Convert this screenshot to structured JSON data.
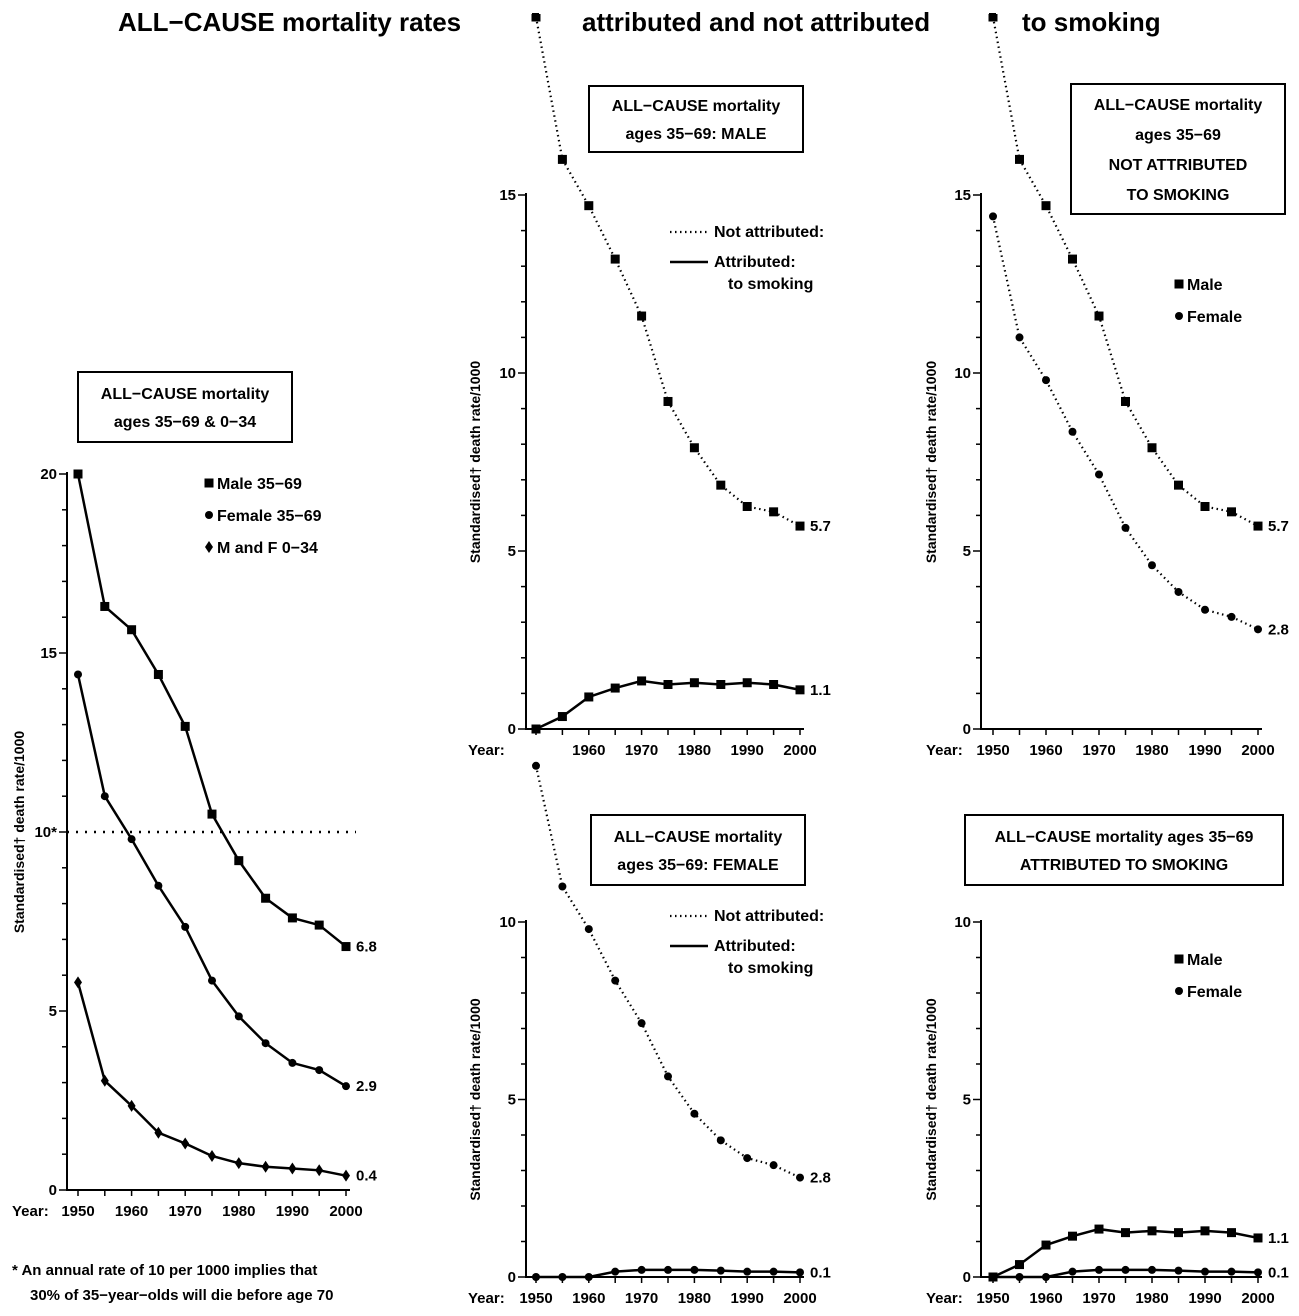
{
  "page": {
    "title_parts": [
      "ALL−CAUSE mortality rates",
      "attributed and not attributed",
      "to smoking"
    ],
    "footnote_lines": [
      "* An annual rate of 10 per 1000 implies that",
      "30% of 35−year−olds will die before age 70"
    ]
  },
  "colors": {
    "ink": "#000000",
    "background": "#ffffff"
  },
  "chart_data": [
    {
      "id": "left",
      "type": "line",
      "box_lines": [
        "ALL−CAUSE mortality",
        "ages 35−69 & 0−34"
      ],
      "ylabel": "Standardised† death rate/1000",
      "x_axis_label": "Year:",
      "x": [
        1950,
        1955,
        1960,
        1965,
        1970,
        1975,
        1980,
        1985,
        1990,
        1995,
        2000
      ],
      "xticks": [
        1950,
        1960,
        1970,
        1980,
        1990,
        2000
      ],
      "xlim": [
        1950,
        2000
      ],
      "yticks": [
        "0",
        "5",
        "10*",
        "15",
        "20"
      ],
      "ylim": [
        0,
        20
      ],
      "reference_line": {
        "y": 10,
        "style": "dotted"
      },
      "legend_position": "top-right",
      "series": [
        {
          "name": "Male 35−69",
          "marker": "square",
          "line": "solid",
          "values": [
            20.0,
            16.3,
            15.65,
            14.4,
            12.95,
            10.5,
            9.2,
            8.15,
            7.6,
            7.4,
            6.8
          ],
          "end_label": "6.8"
        },
        {
          "name": "Female 35−69",
          "marker": "circle",
          "line": "solid",
          "values": [
            14.4,
            11.0,
            9.8,
            8.5,
            7.35,
            5.85,
            4.85,
            4.1,
            3.55,
            3.35,
            2.9
          ],
          "end_label": "2.9"
        },
        {
          "name": "M and F 0−34",
          "marker": "diamond",
          "line": "solid",
          "values": [
            5.8,
            3.05,
            2.35,
            1.6,
            1.3,
            0.95,
            0.75,
            0.65,
            0.6,
            0.55,
            0.4
          ],
          "end_label": "0.4"
        }
      ]
    },
    {
      "id": "male",
      "type": "line",
      "box_lines": [
        "ALL−CAUSE mortality",
        "ages 35−69:  MALE"
      ],
      "ylabel": "Standardised† death rate/1000",
      "x_axis_label": "Year:",
      "x": [
        1950,
        1955,
        1960,
        1965,
        1970,
        1975,
        1980,
        1985,
        1990,
        1995,
        2000
      ],
      "xticks": [
        1960,
        1970,
        1980,
        1990,
        2000
      ],
      "xlim": [
        1950,
        2000
      ],
      "yticks": [
        "0",
        "5",
        "10",
        "15"
      ],
      "ylim": [
        0,
        15
      ],
      "legend_position": "top-right",
      "legend": [
        {
          "lines": [
            "Not attributed:"
          ],
          "line": "dotted"
        },
        {
          "lines": [
            "Attributed:",
            "to smoking"
          ],
          "line": "solid"
        }
      ],
      "series": [
        {
          "line": "dotted",
          "marker": "square",
          "values": [
            20.0,
            16.0,
            14.7,
            13.2,
            11.6,
            9.2,
            7.9,
            6.85,
            6.25,
            6.1,
            5.7
          ],
          "end_label": "5.7"
        },
        {
          "line": "solid",
          "marker": "square",
          "values": [
            0.0,
            0.35,
            0.9,
            1.15,
            1.35,
            1.25,
            1.3,
            1.25,
            1.3,
            1.25,
            1.1
          ],
          "end_label": "1.1"
        }
      ]
    },
    {
      "id": "not-attributed",
      "type": "line",
      "box_lines": [
        "ALL−CAUSE mortality",
        "ages 35−69",
        "NOT ATTRIBUTED",
        "TO SMOKING"
      ],
      "ylabel": "Standardised† death rate/1000",
      "x_axis_label": "Year:",
      "x": [
        1950,
        1955,
        1960,
        1965,
        1970,
        1975,
        1980,
        1985,
        1990,
        1995,
        2000
      ],
      "xticks": [
        1950,
        1960,
        1970,
        1980,
        1990,
        2000
      ],
      "xlim": [
        1950,
        2000
      ],
      "yticks": [
        "0",
        "5",
        "10",
        "15"
      ],
      "ylim": [
        0,
        15
      ],
      "legend_position": "top-right",
      "series": [
        {
          "name": "Male",
          "marker": "square",
          "line": "dotted",
          "values": [
            20.0,
            16.0,
            14.7,
            13.2,
            11.6,
            9.2,
            7.9,
            6.85,
            6.25,
            6.1,
            5.7
          ],
          "end_label": "5.7"
        },
        {
          "name": "Female",
          "marker": "circle",
          "line": "dotted",
          "values": [
            14.4,
            11.0,
            9.8,
            8.35,
            7.15,
            5.65,
            4.6,
            3.85,
            3.35,
            3.15,
            2.8
          ],
          "end_label": "2.8"
        }
      ]
    },
    {
      "id": "female",
      "type": "line",
      "box_lines": [
        "ALL−CAUSE mortality",
        "ages 35−69:  FEMALE"
      ],
      "ylabel": "Standardised† death rate/1000",
      "x_axis_label": "Year:",
      "x": [
        1950,
        1955,
        1960,
        1965,
        1970,
        1975,
        1980,
        1985,
        1990,
        1995,
        2000
      ],
      "xticks": [
        1950,
        1960,
        1970,
        1980,
        1990,
        2000
      ],
      "xlim": [
        1950,
        2000
      ],
      "yticks": [
        "0",
        "5",
        "10"
      ],
      "ylim": [
        0,
        10
      ],
      "legend_position": "top-right",
      "legend": [
        {
          "lines": [
            "Not attributed:"
          ],
          "line": "dotted"
        },
        {
          "lines": [
            "Attributed:",
            "to smoking"
          ],
          "line": "solid"
        }
      ],
      "series": [
        {
          "line": "dotted",
          "marker": "circle",
          "values": [
            14.4,
            11.0,
            9.8,
            8.35,
            7.15,
            5.65,
            4.6,
            3.85,
            3.35,
            3.15,
            2.8
          ],
          "end_label": "2.8"
        },
        {
          "line": "solid",
          "marker": "circle",
          "values": [
            0.0,
            0.0,
            0.0,
            0.15,
            0.2,
            0.2,
            0.2,
            0.18,
            0.15,
            0.15,
            0.13
          ],
          "end_label": "0.1"
        }
      ]
    },
    {
      "id": "attributed",
      "type": "line",
      "box_lines": [
        "ALL−CAUSE mortality ages 35−69",
        "ATTRIBUTED TO SMOKING"
      ],
      "ylabel": "Standardised† death rate/1000",
      "x_axis_label": "Year:",
      "x": [
        1950,
        1955,
        1960,
        1965,
        1970,
        1975,
        1980,
        1985,
        1990,
        1995,
        2000
      ],
      "xticks": [
        1950,
        1960,
        1970,
        1980,
        1990,
        2000
      ],
      "xlim": [
        1950,
        2000
      ],
      "yticks": [
        "0",
        "5",
        "10"
      ],
      "ylim": [
        0,
        10
      ],
      "legend_position": "top-right",
      "series": [
        {
          "name": "Male",
          "marker": "square",
          "line": "solid",
          "values": [
            0.0,
            0.35,
            0.9,
            1.15,
            1.35,
            1.25,
            1.3,
            1.25,
            1.3,
            1.25,
            1.1
          ],
          "end_label": "1.1"
        },
        {
          "name": "Female",
          "marker": "circle",
          "line": "solid",
          "values": [
            0.0,
            0.0,
            0.0,
            0.15,
            0.2,
            0.2,
            0.2,
            0.18,
            0.15,
            0.15,
            0.13
          ],
          "end_label": "0.1"
        }
      ]
    }
  ]
}
